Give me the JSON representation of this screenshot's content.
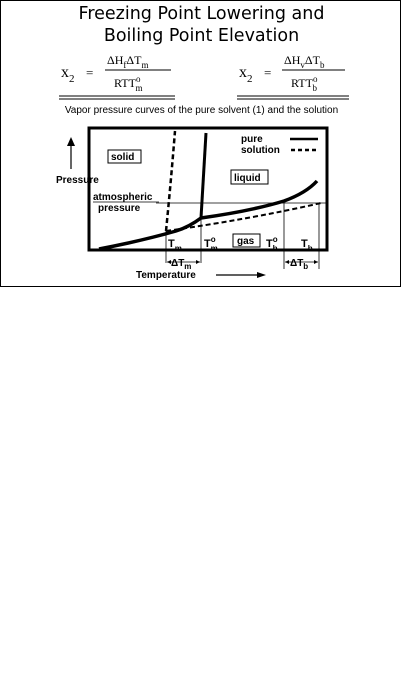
{
  "title_line1": "Freezing Point Lowering and",
  "title_line2": "Boiling Point Elevation",
  "equation_left": {
    "lhs_base": "x",
    "lhs_sub": "2",
    "equals": "=",
    "numerator": "ΔH",
    "numerator_sub1": "f",
    "numerator_mid": "ΔT",
    "numerator_sub2": "m",
    "denominator": "RTT",
    "denominator_sup": "o",
    "denominator_sub": "m"
  },
  "equation_right": {
    "lhs_base": "x",
    "lhs_sub": "2",
    "equals": "=",
    "numerator": "ΔH",
    "numerator_sub1": "v",
    "numerator_mid": "ΔT",
    "numerator_sub2": "b",
    "denominator": "RTT",
    "denominator_sup": "o",
    "denominator_sub": "b"
  },
  "caption": "Vapor pressure curves of the pure solvent (1) and the solution",
  "diagram": {
    "y_axis_label": "Pressure",
    "x_axis_label": "Temperature",
    "region_solid": "solid",
    "region_liquid": "liquid",
    "region_gas": "gas",
    "atm_line1": "atmospheric",
    "atm_line2": "pressure",
    "legend_pure": "pure",
    "legend_solution": "solution",
    "tm_base": "T",
    "tm_sub": "m",
    "tmo_base": "T",
    "tmo_sup": "o",
    "tmo_sub": "m",
    "tbo_base": "T",
    "tbo_sup": "o",
    "tbo_sub": "b",
    "tb_base": "T",
    "tb_sub": "b",
    "delta_tm_base": "ΔT",
    "delta_tm_sub": "m",
    "delta_tb_base": "ΔT",
    "delta_tb_sub": "b",
    "colors": {
      "ink": "#000000",
      "background": "#ffffff"
    }
  }
}
